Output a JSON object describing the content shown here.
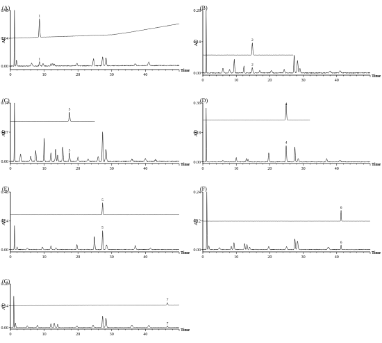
{
  "figure": {
    "panels": [
      "(A)",
      "(B)",
      "(C)",
      "(D)",
      "(E)",
      "(F)",
      "(G)"
    ]
  },
  "chart_data": [
    {
      "panel": "(A)",
      "type": "line",
      "ylabel": "AU",
      "xlabel": "Time",
      "xlim": [
        0,
        50
      ],
      "ylim": [
        -0.03,
        0.48
      ],
      "yticks": [
        "0.48",
        "0.24",
        "0.00"
      ],
      "yticks_values": [
        0.48,
        0.24,
        0.0
      ],
      "xticks": [
        "0",
        "10",
        "20",
        "30",
        "40"
      ],
      "xticks_values": [
        0,
        10,
        20,
        30,
        40
      ],
      "series": [
        {
          "base": 0.24,
          "drift": [
            [
              0,
              0.24
            ],
            [
              30,
              0.27
            ],
            [
              35,
              0.29
            ],
            [
              50,
              0.365
            ]
          ],
          "noise": 0.0015,
          "peaks": [
            [
              8.6,
              0.16,
              0.12
            ]
          ],
          "labels": [
            [
              "1",
              8.6
            ]
          ]
        },
        {
          "base": 0.0,
          "drift": [
            [
              0,
              0.0
            ],
            [
              50,
              0.005
            ]
          ],
          "noise": 0.004,
          "peaks": [
            [
              1.2,
              0.48,
              0.06
            ],
            [
              1.8,
              0.05,
              0.1
            ],
            [
              6.3,
              0.025,
              0.15
            ],
            [
              8.6,
              0.035,
              0.12
            ],
            [
              9.7,
              0.02,
              0.15
            ],
            [
              12.0,
              0.02,
              0.12
            ],
            [
              12.5,
              0.025,
              0.12
            ],
            [
              13.0,
              0.015,
              0.12
            ],
            [
              19.7,
              0.025,
              0.15
            ],
            [
              24.6,
              0.06,
              0.15
            ],
            [
              27.3,
              0.075,
              0.15
            ],
            [
              28.3,
              0.07,
              0.15
            ],
            [
              37.0,
              0.015,
              0.2
            ],
            [
              41.0,
              0.03,
              0.2
            ]
          ],
          "labels": [
            [
              "1",
              8.6
            ]
          ]
        }
      ]
    },
    {
      "panel": "(B)",
      "type": "line",
      "ylabel": "AU",
      "xlabel": "Time",
      "xlim": [
        0,
        50
      ],
      "ylim": [
        -0.01,
        0.28
      ],
      "yticks": [
        "0.28",
        "0.14",
        "0.00"
      ],
      "yticks_values": [
        0.28,
        0.14,
        0.0
      ],
      "xticks": [
        "0",
        "10",
        "20",
        "30",
        "40"
      ],
      "xticks_values": [
        0,
        10,
        20,
        30,
        40
      ],
      "series": [
        {
          "base": 0.08,
          "drift": [
            [
              0,
              0.08
            ],
            [
              27,
              0.08
            ]
          ],
          "end_x": 27,
          "noise": 0.0005,
          "peaks": [
            [
              14.8,
              0.055,
              0.12
            ]
          ],
          "labels": [
            [
              "2",
              14.8
            ]
          ]
        },
        {
          "base": 0.0,
          "drift": [
            [
              0,
              0.0
            ],
            [
              50,
              0.0
            ]
          ],
          "noise": 0.002,
          "peaks": [
            [
              1.0,
              0.28,
              0.06
            ],
            [
              6.0,
              0.02,
              0.15
            ],
            [
              8.0,
              0.015,
              0.15
            ],
            [
              9.4,
              0.06,
              0.12
            ],
            [
              12.3,
              0.03,
              0.12
            ],
            [
              14.8,
              0.025,
              0.12
            ],
            [
              17.0,
              0.01,
              0.15
            ],
            [
              20.5,
              0.01,
              0.2
            ],
            [
              24.3,
              0.015,
              0.15
            ],
            [
              27.3,
              0.08,
              0.12
            ],
            [
              28.3,
              0.055,
              0.15
            ],
            [
              29.0,
              0.02,
              0.15
            ],
            [
              38.0,
              0.008,
              0.2
            ],
            [
              41.0,
              0.01,
              0.2
            ]
          ],
          "labels": [
            [
              "2",
              14.8
            ]
          ]
        }
      ]
    },
    {
      "panel": "(C)",
      "type": "line",
      "ylabel": "AU",
      "xlabel": "Time",
      "xlim": [
        0,
        50
      ],
      "ylim": [
        -0.005,
        0.14
      ],
      "yticks": [
        "0.14",
        "0.07",
        "0.00"
      ],
      "yticks_values": [
        0.14,
        0.07,
        0.0
      ],
      "xticks": [
        "0",
        "10",
        "20",
        "30",
        "40"
      ],
      "xticks_values": [
        0,
        10,
        20,
        30,
        40
      ],
      "series": [
        {
          "base": 0.096,
          "drift": [
            [
              0,
              0.096
            ],
            [
              25,
              0.096
            ]
          ],
          "end_x": 25,
          "noise": 0.0002,
          "peaks": [
            [
              17.5,
              0.022,
              0.12
            ]
          ],
          "labels": [
            [
              "3",
              17.5
            ]
          ]
        },
        {
          "base": 0.0,
          "drift": [
            [
              0,
              0.0
            ],
            [
              50,
              0.0
            ]
          ],
          "noise": 0.0012,
          "peaks": [
            [
              1.2,
              0.14,
              0.06
            ],
            [
              3.0,
              0.018,
              0.12
            ],
            [
              6.0,
              0.012,
              0.15
            ],
            [
              7.5,
              0.025,
              0.12
            ],
            [
              10.0,
              0.055,
              0.1
            ],
            [
              12.0,
              0.02,
              0.12
            ],
            [
              13.4,
              0.03,
              0.12
            ],
            [
              14.0,
              0.015,
              0.12
            ],
            [
              15.5,
              0.035,
              0.12
            ],
            [
              17.5,
              0.02,
              0.12
            ],
            [
              20.0,
              0.01,
              0.15
            ],
            [
              23.0,
              0.005,
              0.2
            ],
            [
              26.0,
              0.012,
              0.15
            ],
            [
              27.3,
              0.07,
              0.12
            ],
            [
              28.3,
              0.03,
              0.15
            ],
            [
              36.0,
              0.005,
              0.2
            ],
            [
              40.0,
              0.006,
              0.2
            ],
            [
              43.0,
              0.004,
              0.2
            ]
          ],
          "labels": [
            [
              "3",
              17.5
            ]
          ]
        }
      ]
    },
    {
      "panel": "(D)",
      "type": "line",
      "ylabel": "AU",
      "xlabel": "Time",
      "xlim": [
        0,
        50
      ],
      "ylim": [
        -0.01,
        0.36
      ],
      "yticks": [
        "0.36",
        "0.18",
        "0.00"
      ],
      "yticks_values": [
        0.36,
        0.18,
        0.0
      ],
      "xticks": [
        "0",
        "10",
        "20",
        "30",
        "40"
      ],
      "xticks_values": [
        0,
        10,
        20,
        30,
        40
      ],
      "series": [
        {
          "base": 0.255,
          "drift": [
            [
              0,
              0.255
            ],
            [
              32,
              0.255
            ]
          ],
          "end_x": 32,
          "noise": 0.0006,
          "peaks": [
            [
              24.9,
              0.1,
              0.12
            ]
          ],
          "labels": [
            [
              "4",
              24.9
            ]
          ]
        },
        {
          "base": 0.0,
          "drift": [
            [
              0,
              0.0
            ],
            [
              50,
              0.0
            ]
          ],
          "noise": 0.002,
          "peaks": [
            [
              1.0,
              0.33,
              0.06
            ],
            [
              6.0,
              0.01,
              0.15
            ],
            [
              10.0,
              0.025,
              0.12
            ],
            [
              13.0,
              0.02,
              0.12
            ],
            [
              13.5,
              0.015,
              0.12
            ],
            [
              19.7,
              0.055,
              0.12
            ],
            [
              24.9,
              0.1,
              0.12
            ],
            [
              27.5,
              0.09,
              0.12
            ],
            [
              28.5,
              0.02,
              0.15
            ],
            [
              37.0,
              0.02,
              0.15
            ],
            [
              41.0,
              0.01,
              0.2
            ]
          ],
          "labels": [
            [
              "4",
              24.9
            ]
          ]
        }
      ]
    },
    {
      "panel": "(E)",
      "type": "line",
      "ylabel": "AU",
      "xlabel": "Time",
      "xlim": [
        0,
        50
      ],
      "ylim": [
        -0.02,
        0.48
      ],
      "yticks": [
        "0.48",
        "0.24",
        "0.00"
      ],
      "yticks_values": [
        0.48,
        0.24,
        0.0
      ],
      "xticks": [
        "0",
        "10",
        "20",
        "30",
        "40"
      ],
      "xticks_values": [
        0,
        10,
        20,
        30,
        40
      ],
      "series": [
        {
          "base": 0.29,
          "drift": [
            [
              0,
              0.29
            ],
            [
              50,
              0.29
            ]
          ],
          "noise": 0.0006,
          "peaks": [
            [
              27.3,
              0.1,
              0.1
            ]
          ],
          "labels": [
            [
              "5",
              27.3
            ]
          ]
        },
        {
          "base": 0.0,
          "drift": [
            [
              0,
              0.0
            ],
            [
              50,
              0.0
            ]
          ],
          "noise": 0.003,
          "peaks": [
            [
              1.2,
              0.2,
              0.06
            ],
            [
              2.0,
              0.02,
              0.1
            ],
            [
              5.0,
              0.01,
              0.15
            ],
            [
              9.5,
              0.02,
              0.12
            ],
            [
              12.0,
              0.03,
              0.12
            ],
            [
              13.5,
              0.015,
              0.12
            ],
            [
              19.7,
              0.04,
              0.12
            ],
            [
              24.9,
              0.11,
              0.12
            ],
            [
              27.3,
              0.16,
              0.1
            ],
            [
              28.5,
              0.04,
              0.15
            ],
            [
              37.0,
              0.035,
              0.15
            ],
            [
              41.5,
              0.01,
              0.2
            ]
          ],
          "labels": [
            [
              "5",
              27.3
            ]
          ]
        }
      ]
    },
    {
      "panel": "(F)",
      "type": "line",
      "ylabel": "AU",
      "xlabel": "Time",
      "xlim": [
        0,
        50
      ],
      "ylim": [
        -0.01,
        0.24
      ],
      "yticks": [
        "0.24",
        "0.12",
        "0.00"
      ],
      "yticks_values": [
        0.24,
        0.12,
        0.0
      ],
      "xticks": [
        "0",
        "10",
        "20",
        "30",
        "40"
      ],
      "xticks_values": [
        0,
        10,
        20,
        30,
        40
      ],
      "series": [
        {
          "base": 0.118,
          "drift": [
            [
              0,
              0.118
            ],
            [
              50,
              0.118
            ]
          ],
          "noise": 0.0003,
          "peaks": [
            [
              41.3,
              0.045,
              0.08
            ]
          ],
          "labels": [
            [
              "6",
              41.3
            ]
          ]
        },
        {
          "base": 0.0,
          "drift": [
            [
              0,
              0.0
            ],
            [
              50,
              0.0
            ]
          ],
          "noise": 0.0015,
          "peaks": [
            [
              1.2,
              0.24,
              0.06
            ],
            [
              1.8,
              0.015,
              0.1
            ],
            [
              5.0,
              0.008,
              0.15
            ],
            [
              8.5,
              0.012,
              0.12
            ],
            [
              9.3,
              0.03,
              0.12
            ],
            [
              12.5,
              0.025,
              0.12
            ],
            [
              13.2,
              0.02,
              0.12
            ],
            [
              14.0,
              0.01,
              0.12
            ],
            [
              19.7,
              0.012,
              0.15
            ],
            [
              25.0,
              0.012,
              0.15
            ],
            [
              27.5,
              0.045,
              0.12
            ],
            [
              28.3,
              0.035,
              0.15
            ],
            [
              37.5,
              0.01,
              0.2
            ],
            [
              41.3,
              0.018,
              0.08
            ]
          ],
          "labels": [
            [
              "6",
              41.3
            ]
          ]
        }
      ]
    },
    {
      "panel": "(G)",
      "type": "line",
      "ylabel": "AU",
      "xlabel": "Time",
      "xlim": [
        0,
        50
      ],
      "ylim": [
        -0.01,
        0.28
      ],
      "yticks": [
        "0.28",
        "0.14",
        "0.00"
      ],
      "yticks_values": [
        0.28,
        0.14,
        0.0
      ],
      "xticks": [
        "0",
        "10",
        "20",
        "30",
        "40"
      ],
      "xticks_values": [
        0,
        10,
        20,
        30,
        40
      ],
      "series": [
        {
          "base": 0.14,
          "drift": [
            [
              0,
              0.14
            ],
            [
              50,
              0.145
            ]
          ],
          "noise": 0.0006,
          "peaks": [
            [
              46.5,
              0.015,
              0.12
            ]
          ],
          "labels": [
            [
              "7",
              46.5
            ]
          ]
        },
        {
          "base": 0.0,
          "drift": [
            [
              0,
              0.0
            ],
            [
              50,
              0.0
            ]
          ],
          "noise": 0.0018,
          "peaks": [
            [
              1.0,
              0.2,
              0.06
            ],
            [
              1.5,
              0.03,
              0.1
            ],
            [
              5.0,
              0.01,
              0.15
            ],
            [
              8.0,
              0.015,
              0.15
            ],
            [
              12.0,
              0.025,
              0.12
            ],
            [
              13.0,
              0.03,
              0.12
            ],
            [
              14.0,
              0.02,
              0.12
            ],
            [
              19.7,
              0.01,
              0.15
            ],
            [
              24.5,
              0.015,
              0.15
            ],
            [
              27.3,
              0.075,
              0.12
            ],
            [
              28.3,
              0.06,
              0.15
            ],
            [
              36.0,
              0.015,
              0.2
            ],
            [
              41.0,
              0.015,
              0.2
            ],
            [
              46.5,
              0.008,
              0.15
            ]
          ],
          "labels": [
            [
              "7",
              46.5
            ]
          ]
        }
      ]
    }
  ]
}
